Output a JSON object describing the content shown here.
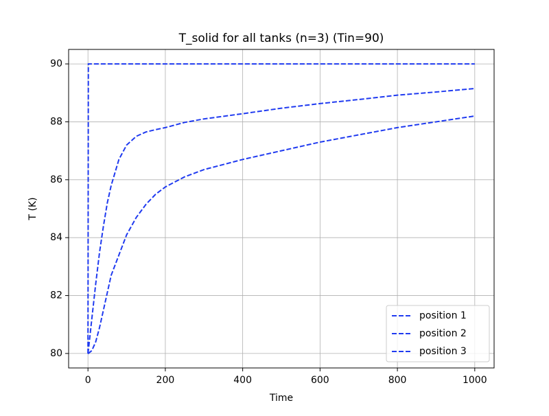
{
  "chart_data": {
    "type": "line",
    "title": "T_solid for all tanks (n=3) (Tin=90)",
    "x_label": "Time",
    "y_label": "T (K)",
    "x": [
      0,
      1,
      10,
      20,
      30,
      40,
      50,
      60,
      80,
      100,
      125,
      150,
      175,
      200,
      250,
      300,
      400,
      500,
      600,
      700,
      800,
      900,
      1000
    ],
    "series": [
      {
        "name": "position 1",
        "color": "#1f3af0",
        "values": [
          80,
          90,
          90,
          90,
          90,
          90,
          90,
          90,
          90,
          90,
          90,
          90,
          90,
          90,
          90,
          90,
          90,
          90,
          90,
          90,
          90,
          90,
          90
        ]
      },
      {
        "name": "position 2",
        "color": "#1f3af0",
        "values": [
          80,
          80.1,
          81.2,
          82.4,
          83.5,
          84.4,
          85.2,
          85.8,
          86.7,
          87.2,
          87.5,
          87.65,
          87.73,
          87.8,
          87.98,
          88.1,
          88.28,
          88.47,
          88.63,
          88.77,
          88.92,
          89.03,
          89.15
        ]
      },
      {
        "name": "position 3",
        "color": "#1f3af0",
        "values": [
          80,
          80,
          80.1,
          80.4,
          80.9,
          81.5,
          82.1,
          82.7,
          83.4,
          84.1,
          84.7,
          85.15,
          85.5,
          85.75,
          86.1,
          86.35,
          86.7,
          87.0,
          87.3,
          87.55,
          87.8,
          88.0,
          88.2
        ]
      }
    ],
    "xlim": [
      -50,
      1050
    ],
    "xticks": [
      0,
      200,
      400,
      600,
      800,
      1000
    ],
    "ylim": [
      79.5,
      90.5
    ],
    "yticks": [
      80,
      82,
      84,
      86,
      88,
      90
    ],
    "grid": true,
    "legend": "lower right"
  }
}
